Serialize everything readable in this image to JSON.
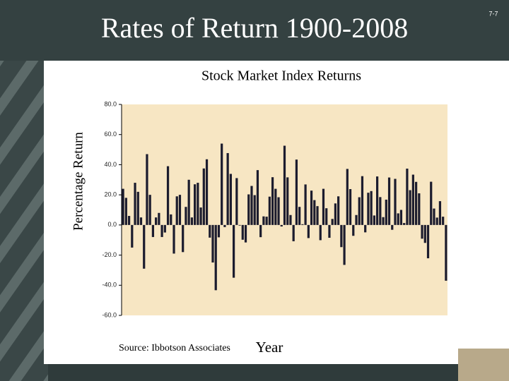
{
  "header": {
    "title": "Rates of Return 1900-2008",
    "page_number": "7-7"
  },
  "chart_data": {
    "type": "bar",
    "title": "Stock Market Index Returns",
    "ylabel": "Percentage Return",
    "xlabel": "Year",
    "source": "Source: Ibbotson Associates",
    "color": "#1c1c2e",
    "background": "#f7e6c3",
    "ylim": [
      -60,
      80
    ],
    "yticks": [
      {
        "value": -60,
        "label": "-60.0"
      },
      {
        "value": -40,
        "label": "-40.0"
      },
      {
        "value": -20,
        "label": "-20.0"
      },
      {
        "value": 0,
        "label": "0.0"
      },
      {
        "value": 20,
        "label": "20.0"
      },
      {
        "value": 40,
        "label": "40.0"
      },
      {
        "value": 60,
        "label": "60.0"
      },
      {
        "value": 80,
        "label": "80.0"
      }
    ],
    "values": [
      24,
      18,
      6,
      -15,
      28,
      22,
      5,
      -29,
      47,
      20,
      -8,
      5,
      8,
      -8,
      -5,
      39,
      7,
      -19,
      19,
      20,
      -18,
      12,
      30,
      5,
      27,
      28,
      11.6,
      37.5,
      43.6,
      -8.4,
      -24.9,
      -43.3,
      -8.2,
      54.0,
      -1.4,
      47.7,
      33.9,
      -35.0,
      31.1,
      -0.4,
      -9.8,
      -11.6,
      20.3,
      25.9,
      19.8,
      36.4,
      -8.1,
      5.7,
      5.5,
      18.8,
      31.7,
      24.0,
      18.4,
      -1.0,
      52.6,
      31.6,
      6.6,
      -10.8,
      43.4,
      12.0,
      0.5,
      26.9,
      -8.7,
      22.8,
      16.5,
      12.5,
      -10.1,
      24.0,
      11.1,
      -8.5,
      4.0,
      14.3,
      19.0,
      -14.7,
      -26.5,
      37.2,
      23.8,
      -7.2,
      6.6,
      18.4,
      32.4,
      -4.9,
      21.4,
      22.5,
      6.3,
      32.2,
      18.5,
      5.2,
      16.8,
      31.5,
      -3.2,
      30.6,
      7.7,
      10.0,
      1.3,
      37.4,
      23.1,
      33.4,
      28.6,
      21.0,
      -9.1,
      -11.9,
      -22.1,
      28.7,
      10.9,
      4.9,
      15.8,
      5.5,
      -37.0
    ]
  }
}
